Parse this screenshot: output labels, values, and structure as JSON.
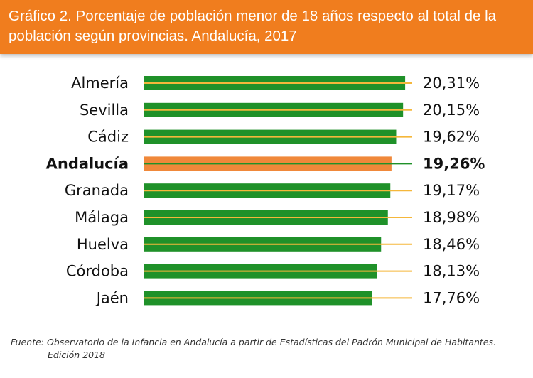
{
  "header": {
    "title": "Gráfico 2.  Porcentaje de población menor de 18 años respecto al total de la población según provincias. Andalucía, 2017"
  },
  "colors": {
    "header": "#f07d1e",
    "bar": "#1f9129",
    "bar_highlight": "#f0883a",
    "line": "#f5b73b",
    "line_highlight": "#1f9129"
  },
  "chart_data": {
    "type": "bar",
    "orientation": "horizontal",
    "categories": [
      "Almería",
      "Sevilla",
      "Cádiz",
      "Andalucía",
      "Granada",
      "Málaga",
      "Huelva",
      "Córdoba",
      "Jaén"
    ],
    "values": [
      20.31,
      20.15,
      19.62,
      19.26,
      19.17,
      18.98,
      18.46,
      18.13,
      17.76
    ],
    "value_labels": [
      "20,31%",
      "20,15%",
      "19,62%",
      "19,26%",
      "19,17%",
      "18,98%",
      "18,46%",
      "18,13%",
      "17,76%"
    ],
    "highlight": "Andalucía",
    "grid": false,
    "legend": "none"
  },
  "source": {
    "line1": "Fuente: Observatorio de la Infancia en Andalucía a partir de Estadísticas del Padrón Municipal de Habitantes.",
    "line2": "Edición 2018"
  }
}
